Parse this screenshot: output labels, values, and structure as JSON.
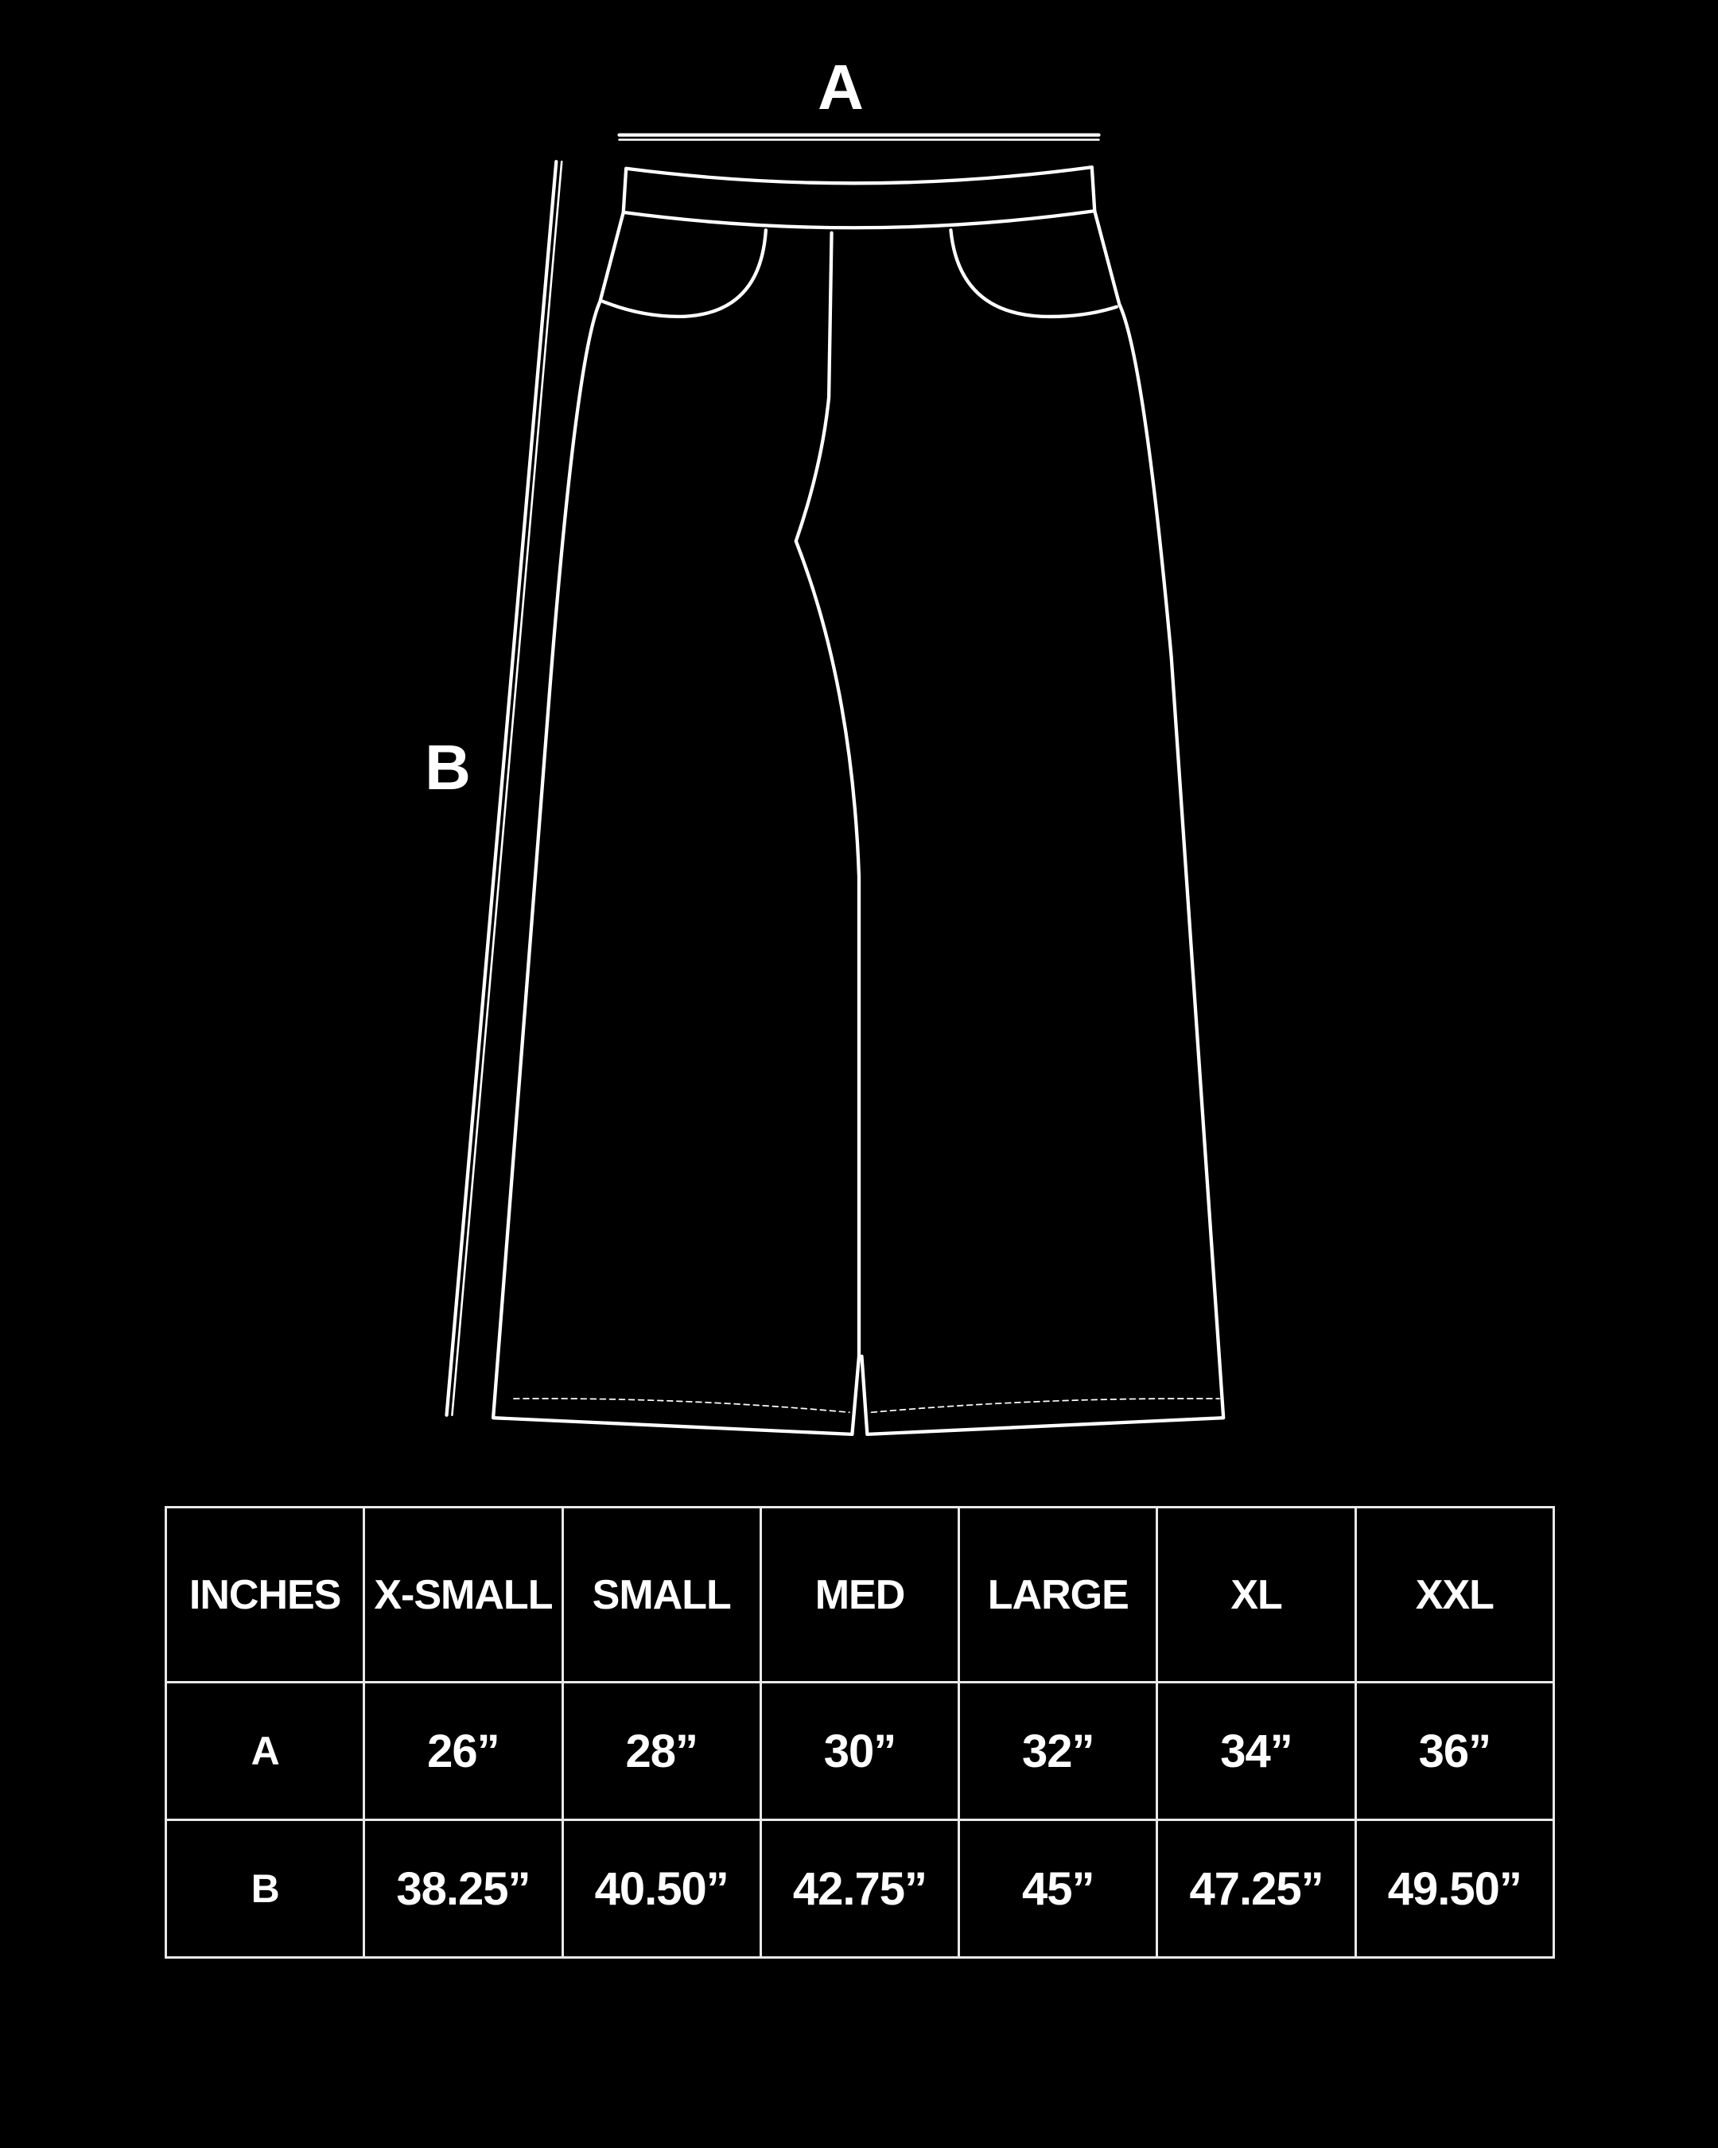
{
  "diagram": {
    "width_label": "A",
    "length_label": "B",
    "line_color": "#ffffff",
    "background": "#000000"
  },
  "size_table": {
    "unit_header": "INCHES",
    "sizes": [
      "X-SMALL",
      "SMALL",
      "MED",
      "LARGE",
      "XL",
      "XXL"
    ],
    "rows": [
      {
        "key": "A",
        "values": [
          "26”",
          "28”",
          "30”",
          "32”",
          "34”",
          "36”"
        ]
      },
      {
        "key": "B",
        "values": [
          "38.25”",
          "40.50”",
          "42.75”",
          "45”",
          "47.25”",
          "49.50”"
        ]
      }
    ]
  }
}
